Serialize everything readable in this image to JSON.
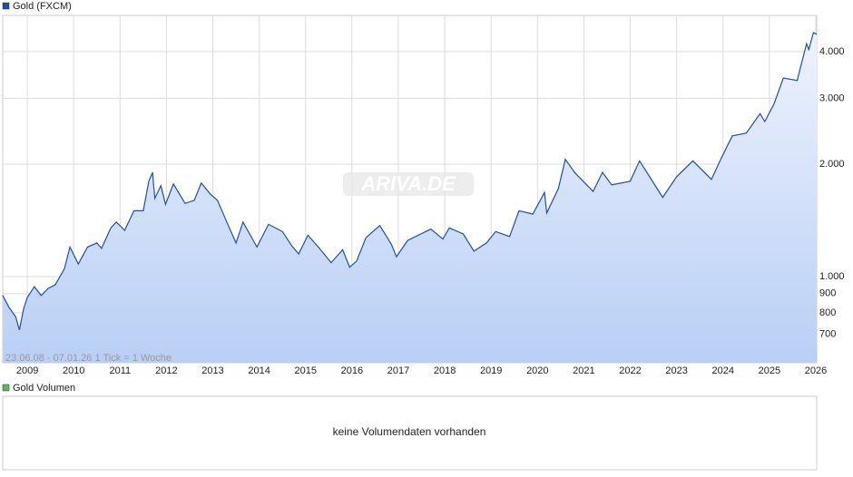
{
  "chart_data": {
    "type": "line",
    "title": "Gold (FXCM)",
    "x": [
      2008.47,
      2008.6,
      2008.75,
      2008.83,
      2008.92,
      2009.0,
      2009.15,
      2009.3,
      2009.45,
      2009.6,
      2009.8,
      2009.92,
      2010.1,
      2010.3,
      2010.5,
      2010.6,
      2010.8,
      2010.92,
      2011.1,
      2011.3,
      2011.5,
      2011.62,
      2011.7,
      2011.75,
      2011.88,
      2011.98,
      2012.15,
      2012.4,
      2012.6,
      2012.75,
      2012.95,
      2013.1,
      2013.3,
      2013.5,
      2013.65,
      2013.95,
      2014.2,
      2014.5,
      2014.7,
      2014.85,
      2015.05,
      2015.3,
      2015.55,
      2015.8,
      2015.95,
      2016.1,
      2016.3,
      2016.6,
      2016.85,
      2016.96,
      2017.2,
      2017.7,
      2017.96,
      2018.1,
      2018.4,
      2018.63,
      2018.9,
      2019.1,
      2019.4,
      2019.6,
      2019.9,
      2020.15,
      2020.2,
      2020.45,
      2020.6,
      2020.8,
      2021.2,
      2021.4,
      2021.6,
      2022.0,
      2022.2,
      2022.7,
      2023.0,
      2023.35,
      2023.75,
      2023.95,
      2024.2,
      2024.5,
      2024.8,
      2024.9,
      2025.1,
      2025.3,
      2025.6,
      2025.8,
      2025.85,
      2025.95,
      2026.02
    ],
    "values": [
      890,
      830,
      780,
      720,
      820,
      880,
      940,
      890,
      930,
      950,
      1050,
      1200,
      1080,
      1200,
      1230,
      1190,
      1350,
      1400,
      1330,
      1500,
      1500,
      1800,
      1900,
      1620,
      1750,
      1560,
      1770,
      1570,
      1600,
      1780,
      1660,
      1600,
      1400,
      1230,
      1400,
      1200,
      1380,
      1320,
      1210,
      1150,
      1290,
      1190,
      1090,
      1180,
      1060,
      1100,
      1270,
      1370,
      1220,
      1130,
      1250,
      1340,
      1260,
      1350,
      1300,
      1170,
      1230,
      1320,
      1280,
      1500,
      1470,
      1680,
      1480,
      1720,
      2060,
      1900,
      1690,
      1900,
      1760,
      1800,
      2040,
      1630,
      1850,
      2040,
      1820,
      2060,
      2380,
      2420,
      2730,
      2600,
      2900,
      3400,
      3350,
      4200,
      4050,
      4500,
      4450
    ],
    "color": "#1f4fa8",
    "xlim": [
      2008.47,
      2026.02
    ],
    "xticks": [
      2009,
      2010,
      2011,
      2012,
      2013,
      2014,
      2015,
      2016,
      2017,
      2018,
      2019,
      2020,
      2021,
      2022,
      2023,
      2024,
      2025,
      2026
    ],
    "ylim": [
      588,
      5000
    ],
    "yticks": [
      700,
      800,
      900,
      {
        "value": 1000,
        "label": "1.000"
      },
      {
        "value": 2000,
        "label": "2.000"
      },
      {
        "value": 3000,
        "label": "3.000"
      },
      {
        "value": 4000,
        "label": "4.000"
      }
    ],
    "log_scale": true,
    "grid": true,
    "annotation": "23.06.08 - 07.01.26   1 Tick = 1 Woche",
    "watermark": "ARIVA.DE",
    "volume_panel": {
      "title": "Gold Volumen",
      "message": "keine Volumendaten vorhanden"
    }
  }
}
